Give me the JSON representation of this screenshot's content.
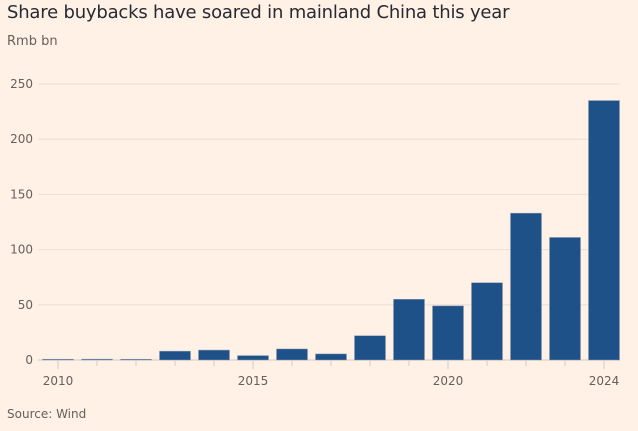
{
  "header": {
    "title": "Share buybacks have soared in mainland China this year",
    "subtitle": "Rmb bn"
  },
  "footer": {
    "source": "Source: Wind"
  },
  "colors": {
    "background": "#fff1e5",
    "bar": "#1f5189",
    "gridline": "#eadfd5",
    "axis": "#d6cbc2",
    "text": "#66605c",
    "title": "#262a33"
  },
  "chart_data": {
    "type": "bar",
    "title": "Share buybacks have soared in mainland China this year",
    "subtitle": "Rmb bn",
    "xlabel": "",
    "ylabel": "Rmb bn",
    "categories": [
      "2010",
      "2011",
      "2012",
      "2013",
      "2014",
      "2015",
      "2016",
      "2017",
      "2018",
      "2019",
      "2020",
      "2021",
      "2022",
      "2023",
      "2024"
    ],
    "values": [
      0.2,
      0.8,
      0.7,
      8,
      9,
      4,
      10,
      5.5,
      22,
      55,
      49,
      70,
      133,
      111,
      235
    ],
    "ylim": [
      0,
      250
    ],
    "yticks": [
      0,
      50,
      100,
      150,
      200,
      250
    ],
    "xtick_labels": [
      "2010",
      "2015",
      "2020",
      "2024"
    ],
    "grid": true,
    "legend": "none",
    "source": "Source: Wind"
  }
}
